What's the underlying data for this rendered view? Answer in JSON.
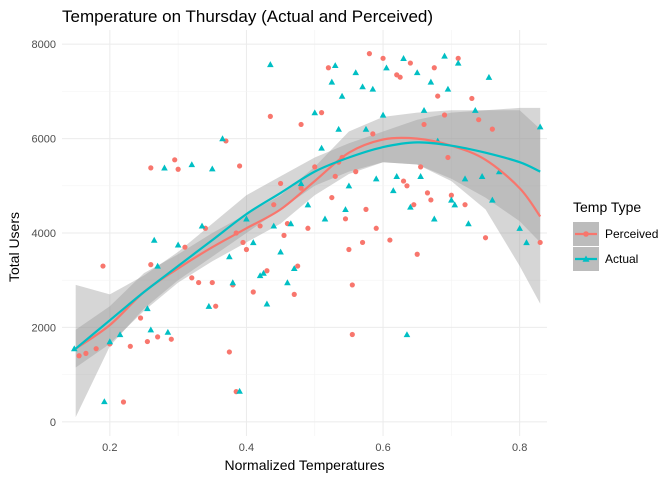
{
  "chart_data": {
    "type": "scatter",
    "title": "Temperature on Thursday (Actual and Perceived)",
    "xlabel": "Normalized Temperatures",
    "ylabel": "Total Users",
    "xlim": [
      0.13,
      0.84
    ],
    "ylim": [
      -300,
      8300
    ],
    "x_ticks": [
      0.2,
      0.4,
      0.6,
      0.8
    ],
    "x_tick_labels": [
      "0.2",
      "0.4",
      "0.6",
      "0.8"
    ],
    "y_ticks": [
      0,
      2000,
      4000,
      6000,
      8000
    ],
    "y_tick_labels": [
      "0",
      "2000",
      "4000",
      "6000",
      "8000"
    ],
    "grid": true,
    "legend": {
      "title": "Temp Type",
      "placement": "right"
    },
    "series": [
      {
        "name": "Perceived",
        "color": "#F8766D",
        "marker": "circle",
        "points": [
          [
            0.155,
            1400
          ],
          [
            0.165,
            1450
          ],
          [
            0.18,
            1550
          ],
          [
            0.19,
            3300
          ],
          [
            0.2,
            1650
          ],
          [
            0.22,
            420
          ],
          [
            0.23,
            1600
          ],
          [
            0.245,
            2200
          ],
          [
            0.255,
            1700
          ],
          [
            0.26,
            5380
          ],
          [
            0.26,
            3330
          ],
          [
            0.27,
            1800
          ],
          [
            0.29,
            1750
          ],
          [
            0.295,
            5550
          ],
          [
            0.3,
            5350
          ],
          [
            0.31,
            3700
          ],
          [
            0.32,
            3050
          ],
          [
            0.33,
            2950
          ],
          [
            0.34,
            4100
          ],
          [
            0.35,
            2950
          ],
          [
            0.355,
            2450
          ],
          [
            0.37,
            5950
          ],
          [
            0.375,
            1480
          ],
          [
            0.38,
            2900
          ],
          [
            0.385,
            4000
          ],
          [
            0.385,
            640
          ],
          [
            0.39,
            5420
          ],
          [
            0.395,
            3800
          ],
          [
            0.4,
            3650
          ],
          [
            0.41,
            2750
          ],
          [
            0.42,
            4150
          ],
          [
            0.43,
            3200
          ],
          [
            0.435,
            6470
          ],
          [
            0.44,
            4600
          ],
          [
            0.45,
            5050
          ],
          [
            0.455,
            3950
          ],
          [
            0.46,
            4200
          ],
          [
            0.47,
            2700
          ],
          [
            0.475,
            3300
          ],
          [
            0.48,
            4950
          ],
          [
            0.48,
            6300
          ],
          [
            0.49,
            4100
          ],
          [
            0.5,
            5400
          ],
          [
            0.51,
            6550
          ],
          [
            0.52,
            7500
          ],
          [
            0.525,
            4750
          ],
          [
            0.53,
            5200
          ],
          [
            0.535,
            5500
          ],
          [
            0.54,
            5600
          ],
          [
            0.545,
            4300
          ],
          [
            0.55,
            3650
          ],
          [
            0.555,
            2900
          ],
          [
            0.555,
            1850
          ],
          [
            0.56,
            5300
          ],
          [
            0.57,
            3800
          ],
          [
            0.575,
            4500
          ],
          [
            0.58,
            7800
          ],
          [
            0.585,
            6100
          ],
          [
            0.59,
            4100
          ],
          [
            0.6,
            7700
          ],
          [
            0.61,
            3850
          ],
          [
            0.62,
            7350
          ],
          [
            0.625,
            7300
          ],
          [
            0.63,
            5100
          ],
          [
            0.635,
            5000
          ],
          [
            0.64,
            7600
          ],
          [
            0.645,
            4600
          ],
          [
            0.65,
            3550
          ],
          [
            0.655,
            5400
          ],
          [
            0.66,
            6300
          ],
          [
            0.665,
            4850
          ],
          [
            0.67,
            4700
          ],
          [
            0.675,
            7500
          ],
          [
            0.68,
            6900
          ],
          [
            0.69,
            6500
          ],
          [
            0.695,
            5600
          ],
          [
            0.7,
            4800
          ],
          [
            0.71,
            7700
          ],
          [
            0.72,
            4600
          ],
          [
            0.73,
            6850
          ],
          [
            0.74,
            6400
          ],
          [
            0.75,
            3900
          ],
          [
            0.76,
            6200
          ],
          [
            0.83,
            3800
          ]
        ]
      },
      {
        "name": "Actual",
        "color": "#00BFC4",
        "marker": "triangle",
        "points": [
          [
            0.148,
            1550
          ],
          [
            0.192,
            430
          ],
          [
            0.2,
            1700
          ],
          [
            0.215,
            1850
          ],
          [
            0.255,
            2400
          ],
          [
            0.26,
            1950
          ],
          [
            0.265,
            3850
          ],
          [
            0.27,
            3300
          ],
          [
            0.28,
            5380
          ],
          [
            0.285,
            1900
          ],
          [
            0.3,
            3750
          ],
          [
            0.32,
            5450
          ],
          [
            0.335,
            4150
          ],
          [
            0.345,
            2450
          ],
          [
            0.35,
            5360
          ],
          [
            0.365,
            6000
          ],
          [
            0.375,
            3500
          ],
          [
            0.38,
            2950
          ],
          [
            0.39,
            650
          ],
          [
            0.4,
            4300
          ],
          [
            0.41,
            3800
          ],
          [
            0.42,
            3100
          ],
          [
            0.425,
            3150
          ],
          [
            0.43,
            2500
          ],
          [
            0.435,
            7570
          ],
          [
            0.44,
            4150
          ],
          [
            0.45,
            3600
          ],
          [
            0.46,
            2950
          ],
          [
            0.465,
            4200
          ],
          [
            0.47,
            3250
          ],
          [
            0.48,
            5050
          ],
          [
            0.49,
            4600
          ],
          [
            0.5,
            6550
          ],
          [
            0.51,
            5800
          ],
          [
            0.515,
            4300
          ],
          [
            0.525,
            7200
          ],
          [
            0.53,
            7550
          ],
          [
            0.535,
            6200
          ],
          [
            0.54,
            6900
          ],
          [
            0.545,
            4500
          ],
          [
            0.55,
            5000
          ],
          [
            0.56,
            7400
          ],
          [
            0.57,
            7100
          ],
          [
            0.575,
            6200
          ],
          [
            0.585,
            7050
          ],
          [
            0.59,
            5150
          ],
          [
            0.6,
            6500
          ],
          [
            0.605,
            7500
          ],
          [
            0.615,
            4900
          ],
          [
            0.62,
            5200
          ],
          [
            0.63,
            7700
          ],
          [
            0.635,
            1850
          ],
          [
            0.64,
            4550
          ],
          [
            0.65,
            7400
          ],
          [
            0.655,
            5200
          ],
          [
            0.66,
            6600
          ],
          [
            0.67,
            7200
          ],
          [
            0.675,
            4300
          ],
          [
            0.68,
            5950
          ],
          [
            0.69,
            7750
          ],
          [
            0.695,
            7050
          ],
          [
            0.7,
            4700
          ],
          [
            0.705,
            4600
          ],
          [
            0.71,
            7600
          ],
          [
            0.72,
            5150
          ],
          [
            0.725,
            4200
          ],
          [
            0.735,
            6600
          ],
          [
            0.745,
            5200
          ],
          [
            0.755,
            7300
          ],
          [
            0.76,
            4700
          ],
          [
            0.77,
            5300
          ],
          [
            0.8,
            4100
          ],
          [
            0.81,
            3800
          ],
          [
            0.83,
            6250
          ]
        ]
      }
    ],
    "smooth": [
      {
        "name": "Perceived",
        "color": "#F8766D",
        "x": [
          0.15,
          0.2,
          0.25,
          0.3,
          0.35,
          0.4,
          0.45,
          0.5,
          0.55,
          0.6,
          0.65,
          0.7,
          0.75,
          0.8,
          0.83
        ],
        "y": [
          1550,
          2050,
          2750,
          3250,
          3700,
          4100,
          4500,
          5100,
          5700,
          5980,
          6000,
          5850,
          5550,
          4950,
          4350
        ],
        "lower": [
          1150,
          1650,
          2350,
          2950,
          3400,
          3800,
          4200,
          4800,
          5250,
          5500,
          5450,
          5100,
          4500,
          3300,
          2500
        ],
        "upper": [
          1950,
          2450,
          3150,
          3550,
          4000,
          4400,
          4800,
          5400,
          6150,
          6460,
          6550,
          6600,
          6600,
          6600,
          6200
        ]
      },
      {
        "name": "Actual",
        "color": "#00BFC4",
        "x": [
          0.15,
          0.2,
          0.25,
          0.3,
          0.35,
          0.4,
          0.45,
          0.5,
          0.55,
          0.6,
          0.65,
          0.7,
          0.75,
          0.8,
          0.83
        ],
        "y": [
          1550,
          2150,
          2750,
          3300,
          3850,
          4400,
          4850,
          5300,
          5600,
          5820,
          5920,
          5850,
          5700,
          5500,
          5300
        ],
        "lower": [
          100,
          1600,
          2400,
          3000,
          3500,
          4000,
          4500,
          5000,
          5300,
          5500,
          5450,
          5150,
          4750,
          4250,
          3800
        ],
        "upper": [
          2900,
          2700,
          3100,
          3600,
          4200,
          4800,
          5200,
          5600,
          5900,
          6150,
          6400,
          6550,
          6600,
          6650,
          6650
        ]
      }
    ]
  }
}
